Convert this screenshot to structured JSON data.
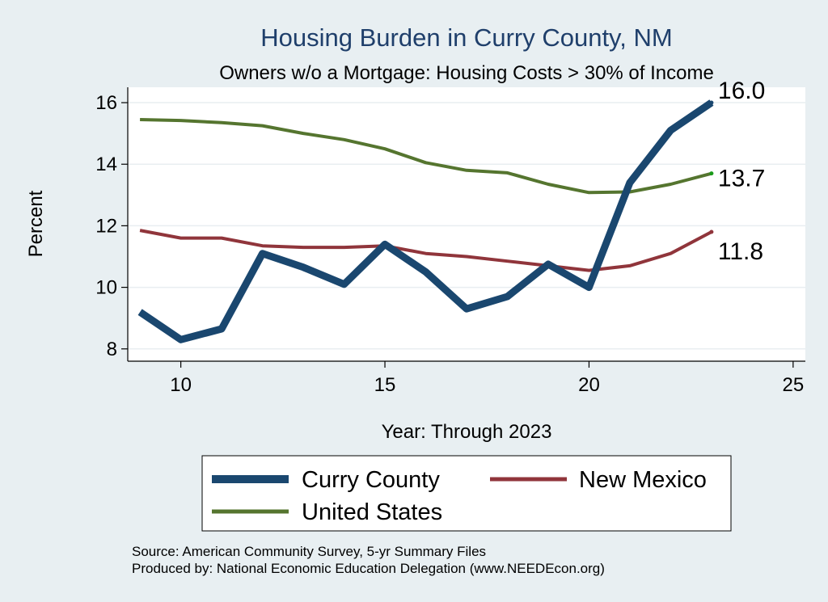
{
  "chart_data": {
    "type": "line",
    "title": "Housing Burden in Curry County, NM",
    "subtitle": "Owners w/o a Mortgage: Housing Costs > 30% of Income",
    "xlabel": "Year: Through 2023",
    "ylabel": "Percent",
    "xlim": [
      8.7,
      25.3
    ],
    "ylim": [
      7.6,
      16.5
    ],
    "xticks": [
      10,
      15,
      20,
      25
    ],
    "yticks": [
      8,
      10,
      12,
      14,
      16
    ],
    "grid": true,
    "x": [
      9,
      10,
      11,
      12,
      13,
      14,
      15,
      16,
      17,
      18,
      19,
      20,
      21,
      22,
      23
    ],
    "series": [
      {
        "name": "Curry County",
        "color": "#1a476f",
        "values": [
          9.2,
          8.3,
          8.65,
          11.1,
          10.65,
          10.1,
          11.4,
          10.5,
          9.3,
          9.7,
          10.75,
          10.0,
          13.4,
          15.1,
          16.0
        ],
        "end_label": "16.0"
      },
      {
        "name": "New Mexico",
        "color": "#90353b",
        "values": [
          11.85,
          11.6,
          11.6,
          11.35,
          11.3,
          11.3,
          11.35,
          11.1,
          11.0,
          10.85,
          10.7,
          10.55,
          10.7,
          11.1,
          11.8
        ],
        "end_label": "11.8"
      },
      {
        "name": "United States",
        "color": "#55752f",
        "values": [
          15.45,
          15.42,
          15.35,
          15.25,
          15.0,
          14.8,
          14.5,
          14.05,
          13.8,
          13.72,
          13.35,
          13.08,
          13.1,
          13.35,
          13.7
        ],
        "end_label": "13.7"
      }
    ],
    "legend": {
      "placement": "bottom",
      "items": [
        "Curry County",
        "New Mexico",
        "United States"
      ]
    },
    "notes": [
      "Source: American Community Survey, 5-yr Summary Files",
      "Produced by: National Economic Education Delegation (www.NEEDEcon.org)"
    ]
  }
}
